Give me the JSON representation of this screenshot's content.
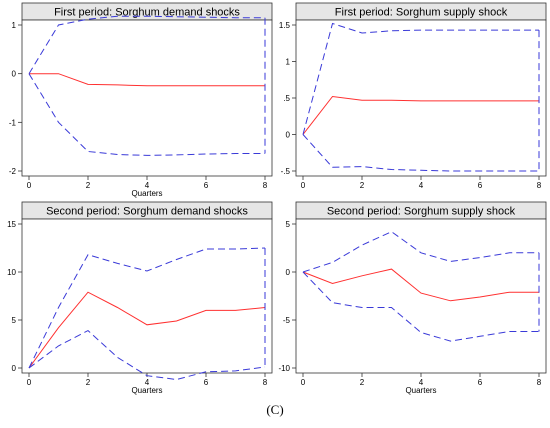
{
  "caption": "(C)",
  "colors": {
    "header_bg": "#e6e6e6",
    "frame": "#333333",
    "response_line": "#ff3030",
    "band_line": "#3a3ad8"
  },
  "chart_data": [
    {
      "type": "line",
      "title": "First period: Sorghum demand shocks",
      "xlabel": "Quarters",
      "ylabel": "",
      "xlim": [
        0,
        8
      ],
      "ylim": [
        -2,
        1
      ],
      "x_ticks": [
        0,
        2,
        4,
        6,
        8
      ],
      "y_ticks": [
        -2,
        -1,
        0,
        1
      ],
      "grid": false,
      "x": [
        0,
        1,
        2,
        3,
        4,
        5,
        6,
        7,
        8
      ],
      "series": [
        {
          "role": "response",
          "style": "solid",
          "values": [
            0,
            0,
            -0.22,
            -0.23,
            -0.25,
            -0.25,
            -0.25,
            -0.25,
            -0.25
          ]
        },
        {
          "role": "upper",
          "style": "dashed",
          "values": [
            0,
            1.0,
            1.12,
            1.18,
            1.18,
            1.17,
            1.16,
            1.15,
            1.15
          ]
        },
        {
          "role": "lower",
          "style": "dashed",
          "values": [
            0,
            -1.0,
            -1.6,
            -1.66,
            -1.68,
            -1.67,
            -1.65,
            -1.64,
            -1.64
          ]
        }
      ]
    },
    {
      "type": "line",
      "title": "First period: Sorghum supply shock",
      "xlabel": "",
      "ylabel": "",
      "xlim": [
        0,
        8
      ],
      "ylim": [
        -0.5,
        1.5
      ],
      "x_ticks": [
        0,
        2,
        4,
        6,
        8
      ],
      "y_ticks": [
        -0.5,
        0,
        0.5,
        1,
        1.5
      ],
      "y_tick_labels": [
        "-.5",
        "0",
        ".5",
        "1",
        "1.5"
      ],
      "grid": false,
      "x": [
        0,
        1,
        2,
        3,
        4,
        5,
        6,
        7,
        8
      ],
      "series": [
        {
          "role": "response",
          "style": "solid",
          "values": [
            0,
            0.52,
            0.47,
            0.47,
            0.46,
            0.46,
            0.46,
            0.46,
            0.46
          ]
        },
        {
          "role": "upper",
          "style": "dashed",
          "values": [
            0,
            1.52,
            1.39,
            1.42,
            1.43,
            1.43,
            1.43,
            1.43,
            1.43
          ]
        },
        {
          "role": "lower",
          "style": "dashed",
          "values": [
            0,
            -0.45,
            -0.44,
            -0.48,
            -0.49,
            -0.5,
            -0.5,
            -0.5,
            -0.5
          ]
        }
      ]
    },
    {
      "type": "line",
      "title": "Second period: Sorghum demand shocks",
      "xlabel": "Quarters",
      "ylabel": "",
      "xlim": [
        0,
        8
      ],
      "ylim": [
        0,
        15
      ],
      "x_ticks": [
        0,
        2,
        4,
        6,
        8
      ],
      "y_ticks": [
        0,
        5,
        10,
        15
      ],
      "grid": false,
      "x": [
        0,
        1,
        2,
        3,
        4,
        5,
        6,
        7,
        8
      ],
      "series": [
        {
          "role": "response",
          "style": "solid",
          "values": [
            0,
            4.2,
            7.9,
            6.3,
            4.5,
            4.9,
            6.0,
            6.0,
            6.3
          ]
        },
        {
          "role": "upper",
          "style": "dashed",
          "values": [
            0,
            6.3,
            11.8,
            10.9,
            10.1,
            11.3,
            12.4,
            12.4,
            12.5
          ]
        },
        {
          "role": "lower",
          "style": "dashed",
          "values": [
            0,
            2.3,
            3.9,
            1.1,
            -0.8,
            -1.2,
            -0.4,
            -0.3,
            0.1
          ]
        }
      ]
    },
    {
      "type": "line",
      "title": "Second period: Sorghum supply shock",
      "xlabel": "Quarters",
      "ylabel": "",
      "xlim": [
        0,
        8
      ],
      "ylim": [
        -10,
        5
      ],
      "x_ticks": [
        0,
        2,
        4,
        6,
        8
      ],
      "y_ticks": [
        -10,
        -5,
        0,
        5
      ],
      "grid": false,
      "x": [
        0,
        1,
        2,
        3,
        4,
        5,
        6,
        7,
        8
      ],
      "series": [
        {
          "role": "response",
          "style": "solid",
          "values": [
            0,
            -1.2,
            -0.4,
            0.3,
            -2.2,
            -3.0,
            -2.6,
            -2.1,
            -2.1
          ]
        },
        {
          "role": "upper",
          "style": "dashed",
          "values": [
            0,
            1.0,
            2.8,
            4.2,
            2.0,
            1.1,
            1.5,
            2.0,
            2.0
          ]
        },
        {
          "role": "lower",
          "style": "dashed",
          "values": [
            0,
            -3.2,
            -3.7,
            -3.7,
            -6.3,
            -7.2,
            -6.7,
            -6.2,
            -6.2
          ]
        }
      ]
    }
  ]
}
